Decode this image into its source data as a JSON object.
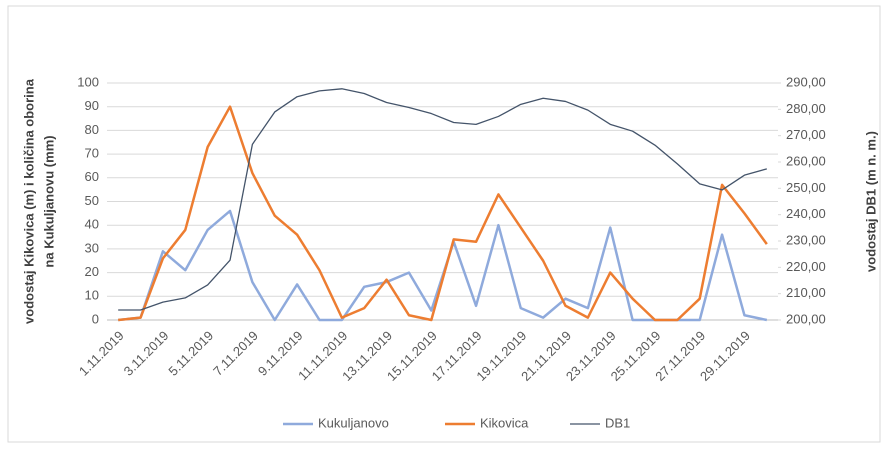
{
  "chart_data": {
    "type": "line",
    "ylabel": [
      "vodostaj Kikovica  (m) i količina oborina",
      "na Kukuljanovu  (mm)"
    ],
    "y2label": "vodostaj DB1 (m n. m.)",
    "categories": [
      "1.11.2019",
      null,
      "3.11.2019",
      null,
      "5.11.2019",
      null,
      "7.11.2019",
      null,
      "9.11.2019",
      null,
      "11.11.2019",
      null,
      "13.11.2019",
      null,
      "15.11.2019",
      null,
      "17.11.2019",
      null,
      "19.11.2019",
      null,
      "21.11.2019",
      null,
      "23.11.2019",
      null,
      "25.11.2019",
      null,
      "27.11.2019",
      null,
      "29.11.2019",
      null
    ],
    "series": [
      {
        "name": "Kukuljanovo",
        "color": "#8faadc",
        "values": [
          0,
          1,
          29,
          21,
          38,
          46,
          16,
          0,
          15,
          0,
          0,
          14,
          16,
          20,
          4,
          33,
          6,
          40,
          5,
          1,
          9,
          5,
          39,
          0,
          0,
          0,
          0,
          36,
          2,
          0
        ]
      },
      {
        "name": "Kikovica",
        "color": "#ed7d31",
        "values": [
          0,
          1,
          26,
          38,
          73,
          90,
          62,
          44,
          36,
          21,
          1,
          5,
          17,
          2,
          0,
          34,
          33,
          53,
          39,
          25,
          6,
          1,
          20,
          9,
          0,
          0,
          9,
          57,
          45,
          32
        ]
      },
      {
        "name": "DB1",
        "color": "#44546a",
        "axis": "y2",
        "values": [
          203.8,
          203.8,
          206.8,
          208.4,
          213.3,
          222.7,
          266.7,
          279,
          284.8,
          287,
          287.8,
          286,
          282.6,
          280.7,
          278.4,
          275,
          274.3,
          277.3,
          281.9,
          284.2,
          283,
          279.7,
          274.3,
          271.7,
          266.4,
          259.3,
          251.7,
          249.4,
          255,
          257.4
        ]
      }
    ],
    "ylim": [
      0,
      100
    ],
    "yticks": [
      0,
      10,
      20,
      30,
      40,
      50,
      60,
      70,
      80,
      90,
      100
    ],
    "y2lim": [
      200,
      290
    ],
    "y2ticks": [
      {
        "value": 200,
        "label": "200,00"
      },
      {
        "value": 210,
        "label": "210,00"
      },
      {
        "value": 220,
        "label": "220,00"
      },
      {
        "value": 230,
        "label": "230,00"
      },
      {
        "value": 240,
        "label": "240,00"
      },
      {
        "value": 250,
        "label": "250,00"
      },
      {
        "value": 260,
        "label": "260,00"
      },
      {
        "value": 270,
        "label": "270,00"
      },
      {
        "value": 280,
        "label": "280,00"
      },
      {
        "value": 290,
        "label": "290,00"
      }
    ],
    "grid": true,
    "legend": "bottom"
  }
}
